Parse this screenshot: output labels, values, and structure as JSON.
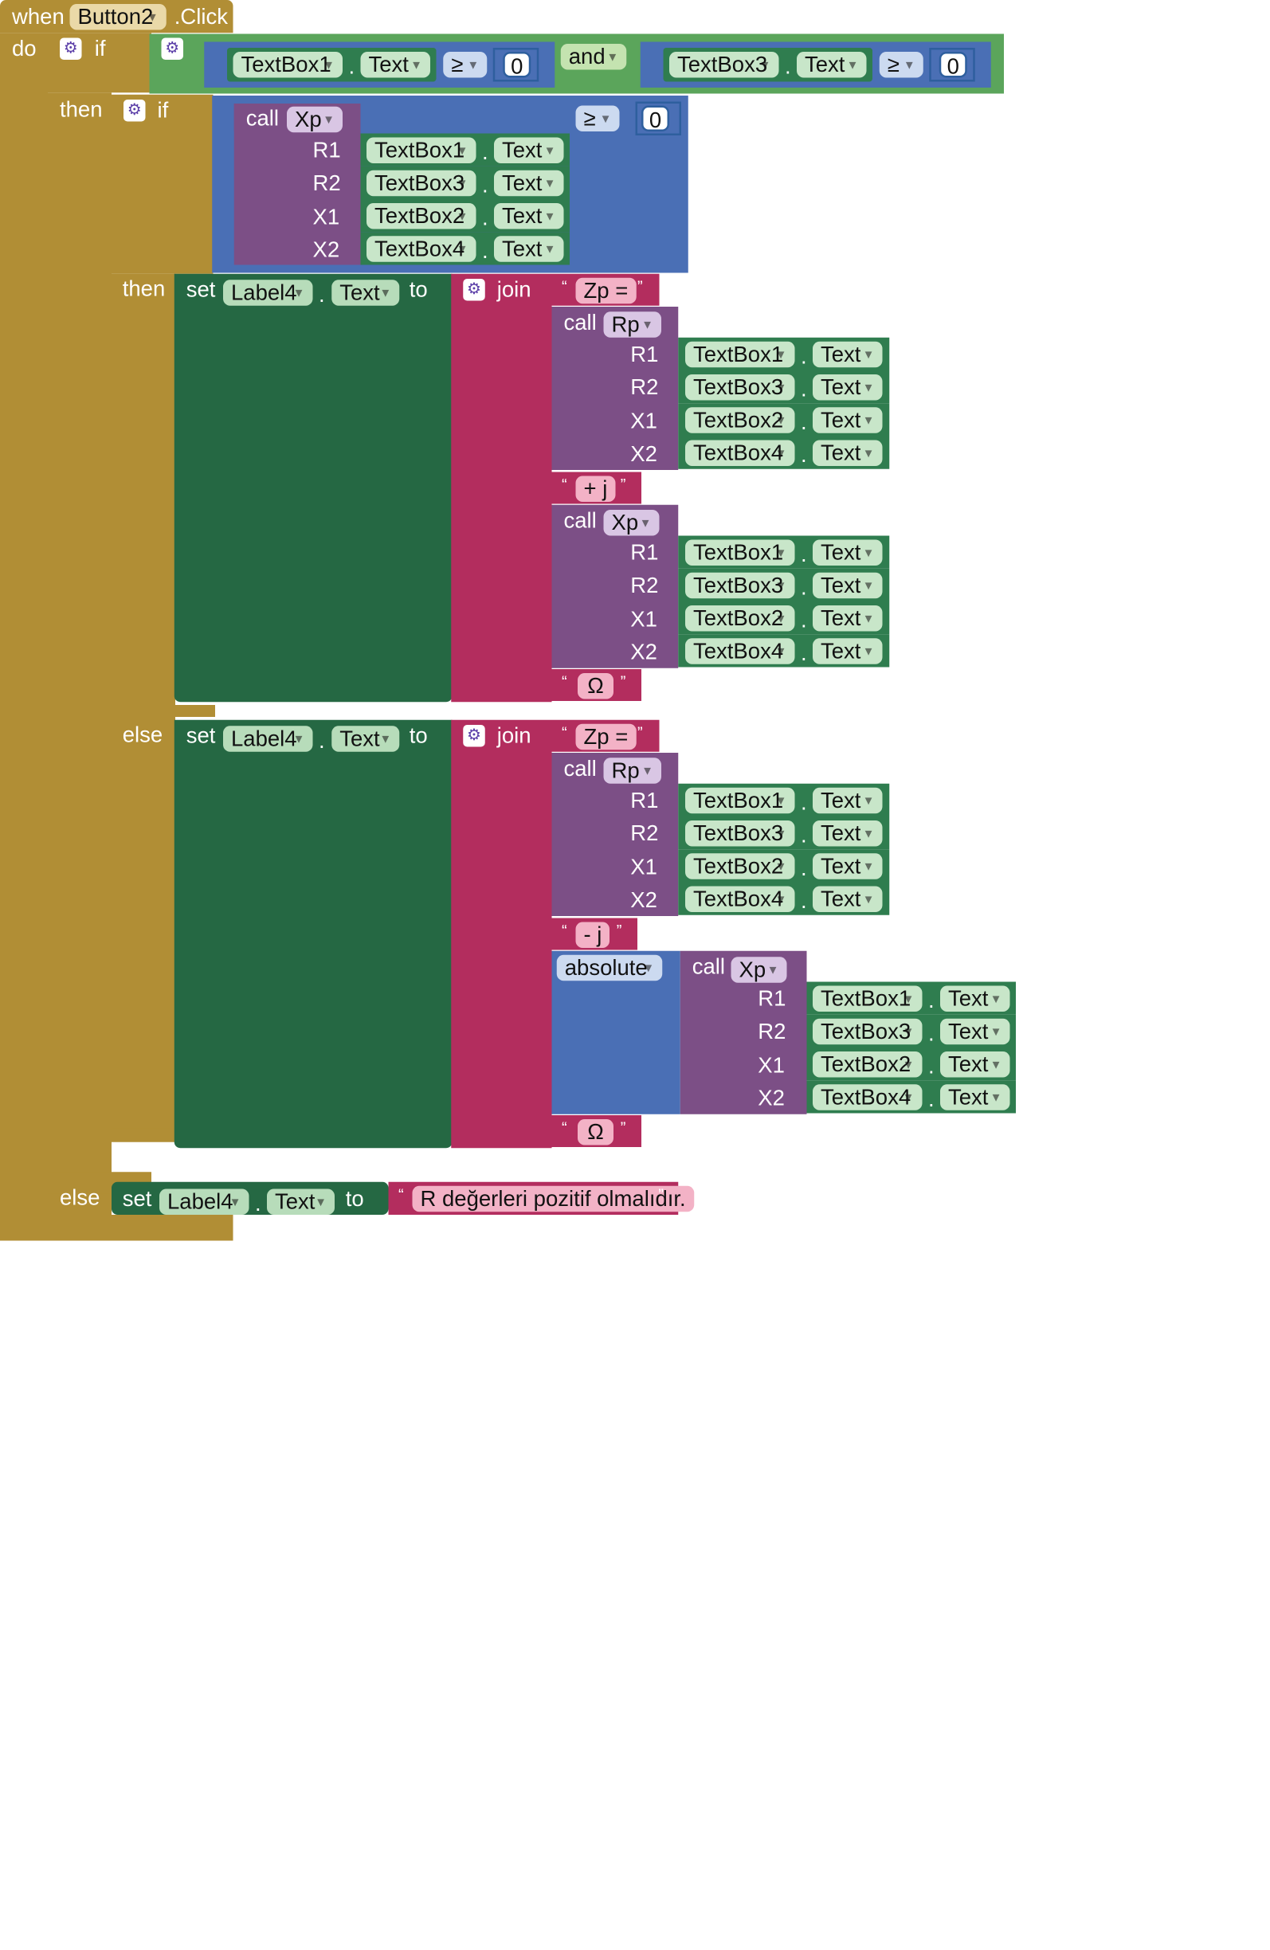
{
  "kw": {
    "when": "when",
    "do": "do",
    "then": "then",
    "else": "else",
    "if": "if",
    "and": "and",
    "call": "call",
    "set": "set",
    "to": "to",
    "join": "join",
    "absolute": "absolute"
  },
  "event": {
    "component": "Button2",
    "suffix": ".Click"
  },
  "params": {
    "r1": "R1",
    "r2": "R2",
    "x1": "X1",
    "x2": "X2"
  },
  "boxes": {
    "tb1": "TextBox1",
    "tb2": "TextBox2",
    "tb3": "TextBox3",
    "tb4": "TextBox4"
  },
  "prop": {
    "text": "Text"
  },
  "procs": {
    "xp": "Xp",
    "rp": "Rp"
  },
  "ops": {
    "gte": "≥"
  },
  "nums": {
    "zero": "0"
  },
  "label": {
    "name": "Label4"
  },
  "strings": {
    "zp": "Zp =",
    "plus_j": "+ j",
    "minus_j": "- j",
    "ohm": "Ω",
    "error": "R değerleri pozitif olmalıdır."
  },
  "quote": {
    "open": "“",
    "close": "”"
  },
  "dot": "."
}
